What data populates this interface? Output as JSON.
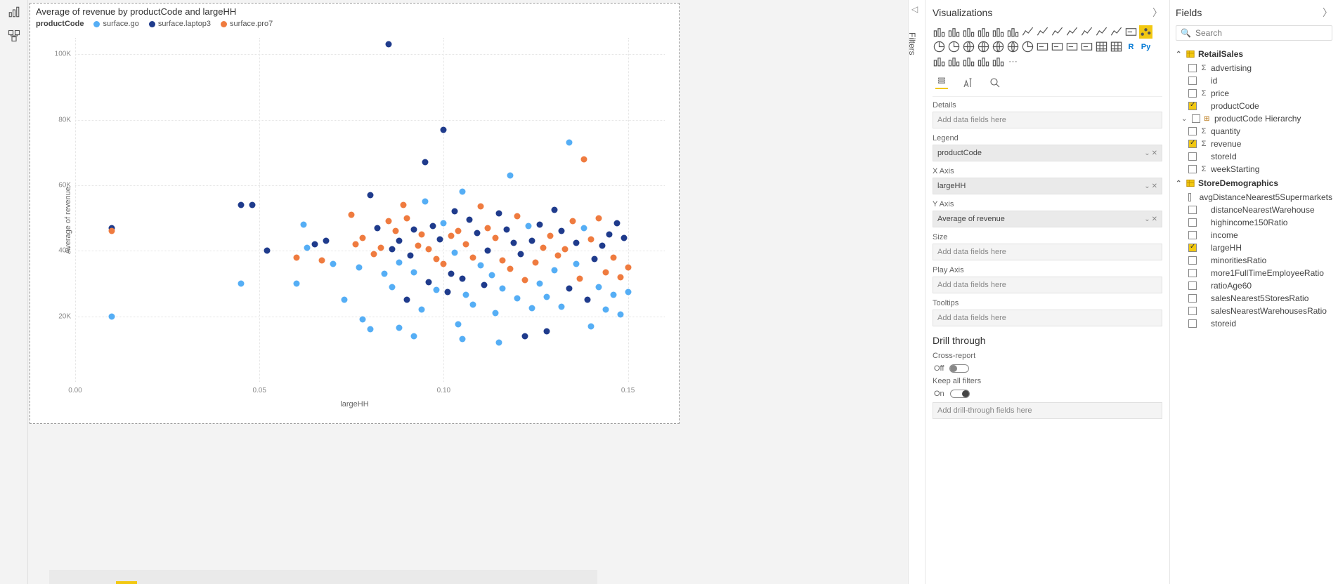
{
  "left_rail": {
    "icons": [
      "report-view-icon",
      "model-view-icon"
    ]
  },
  "chart": {
    "type": "scatter",
    "title": "Average of revenue by productCode and largeHH",
    "legend_title": "productCode",
    "series": [
      {
        "name": "surface.go",
        "color": "#55aef5"
      },
      {
        "name": "surface.laptop3",
        "color": "#1f3b8c"
      },
      {
        "name": "surface.pro7",
        "color": "#ef7b3f"
      }
    ],
    "x_label": "largeHH",
    "y_label": "Average of revenue",
    "xlim": [
      0.0,
      0.16
    ],
    "ylim": [
      0,
      105000
    ],
    "yticks": [
      20000,
      40000,
      60000,
      80000,
      100000
    ],
    "ytick_labels": [
      "20K",
      "40K",
      "60K",
      "80K",
      "100K"
    ],
    "xticks": [
      0.0,
      0.05,
      0.1,
      0.15
    ],
    "xtick_labels": [
      "0.00",
      "0.05",
      "0.10",
      "0.15"
    ],
    "marker_size": 9,
    "background_color": "#ffffff",
    "grid_color": "#e4e4e4",
    "points": [
      {
        "x": 0.01,
        "y": 20000,
        "s": 0
      },
      {
        "x": 0.01,
        "y": 47000,
        "s": 1
      },
      {
        "x": 0.01,
        "y": 46000,
        "s": 2
      },
      {
        "x": 0.045,
        "y": 30000,
        "s": 0
      },
      {
        "x": 0.045,
        "y": 54000,
        "s": 1
      },
      {
        "x": 0.048,
        "y": 54000,
        "s": 1
      },
      {
        "x": 0.052,
        "y": 40000,
        "s": 1
      },
      {
        "x": 0.06,
        "y": 38000,
        "s": 2
      },
      {
        "x": 0.06,
        "y": 30000,
        "s": 0
      },
      {
        "x": 0.062,
        "y": 48000,
        "s": 0
      },
      {
        "x": 0.063,
        "y": 41000,
        "s": 0
      },
      {
        "x": 0.065,
        "y": 42000,
        "s": 1
      },
      {
        "x": 0.067,
        "y": 37000,
        "s": 2
      },
      {
        "x": 0.068,
        "y": 43000,
        "s": 1
      },
      {
        "x": 0.07,
        "y": 36000,
        "s": 0
      },
      {
        "x": 0.073,
        "y": 25000,
        "s": 0
      },
      {
        "x": 0.075,
        "y": 51000,
        "s": 2
      },
      {
        "x": 0.076,
        "y": 42000,
        "s": 2
      },
      {
        "x": 0.077,
        "y": 35000,
        "s": 0
      },
      {
        "x": 0.078,
        "y": 44000,
        "s": 2
      },
      {
        "x": 0.08,
        "y": 57000,
        "s": 1
      },
      {
        "x": 0.08,
        "y": 16000,
        "s": 0
      },
      {
        "x": 0.081,
        "y": 39000,
        "s": 2
      },
      {
        "x": 0.082,
        "y": 47000,
        "s": 1
      },
      {
        "x": 0.083,
        "y": 41000,
        "s": 2
      },
      {
        "x": 0.084,
        "y": 33000,
        "s": 0
      },
      {
        "x": 0.085,
        "y": 49000,
        "s": 2
      },
      {
        "x": 0.085,
        "y": 103000,
        "s": 1
      },
      {
        "x": 0.086,
        "y": 40500,
        "s": 1
      },
      {
        "x": 0.086,
        "y": 29000,
        "s": 0
      },
      {
        "x": 0.087,
        "y": 46000,
        "s": 2
      },
      {
        "x": 0.088,
        "y": 43000,
        "s": 1
      },
      {
        "x": 0.088,
        "y": 36500,
        "s": 0
      },
      {
        "x": 0.089,
        "y": 54000,
        "s": 2
      },
      {
        "x": 0.09,
        "y": 50000,
        "s": 2
      },
      {
        "x": 0.09,
        "y": 25000,
        "s": 1
      },
      {
        "x": 0.091,
        "y": 38500,
        "s": 1
      },
      {
        "x": 0.092,
        "y": 46500,
        "s": 1
      },
      {
        "x": 0.092,
        "y": 33500,
        "s": 0
      },
      {
        "x": 0.093,
        "y": 41500,
        "s": 2
      },
      {
        "x": 0.094,
        "y": 45000,
        "s": 2
      },
      {
        "x": 0.094,
        "y": 22000,
        "s": 0
      },
      {
        "x": 0.095,
        "y": 67000,
        "s": 1
      },
      {
        "x": 0.095,
        "y": 55000,
        "s": 0
      },
      {
        "x": 0.096,
        "y": 40500,
        "s": 2
      },
      {
        "x": 0.096,
        "y": 30500,
        "s": 1
      },
      {
        "x": 0.097,
        "y": 47500,
        "s": 1
      },
      {
        "x": 0.098,
        "y": 37500,
        "s": 2
      },
      {
        "x": 0.098,
        "y": 28000,
        "s": 0
      },
      {
        "x": 0.099,
        "y": 43500,
        "s": 1
      },
      {
        "x": 0.1,
        "y": 77000,
        "s": 1
      },
      {
        "x": 0.1,
        "y": 48500,
        "s": 0
      },
      {
        "x": 0.1,
        "y": 36000,
        "s": 2
      },
      {
        "x": 0.101,
        "y": 27500,
        "s": 1
      },
      {
        "x": 0.102,
        "y": 44500,
        "s": 2
      },
      {
        "x": 0.102,
        "y": 33000,
        "s": 1
      },
      {
        "x": 0.103,
        "y": 52000,
        "s": 1
      },
      {
        "x": 0.103,
        "y": 39500,
        "s": 0
      },
      {
        "x": 0.104,
        "y": 46000,
        "s": 2
      },
      {
        "x": 0.105,
        "y": 58000,
        "s": 0
      },
      {
        "x": 0.105,
        "y": 31500,
        "s": 1
      },
      {
        "x": 0.106,
        "y": 42000,
        "s": 2
      },
      {
        "x": 0.106,
        "y": 26500,
        "s": 0
      },
      {
        "x": 0.107,
        "y": 49500,
        "s": 1
      },
      {
        "x": 0.108,
        "y": 38000,
        "s": 2
      },
      {
        "x": 0.108,
        "y": 23500,
        "s": 0
      },
      {
        "x": 0.109,
        "y": 45500,
        "s": 1
      },
      {
        "x": 0.11,
        "y": 53500,
        "s": 2
      },
      {
        "x": 0.11,
        "y": 35500,
        "s": 0
      },
      {
        "x": 0.111,
        "y": 29500,
        "s": 1
      },
      {
        "x": 0.112,
        "y": 47000,
        "s": 2
      },
      {
        "x": 0.112,
        "y": 40000,
        "s": 1
      },
      {
        "x": 0.113,
        "y": 32500,
        "s": 0
      },
      {
        "x": 0.114,
        "y": 44000,
        "s": 2
      },
      {
        "x": 0.114,
        "y": 21000,
        "s": 0
      },
      {
        "x": 0.115,
        "y": 51500,
        "s": 1
      },
      {
        "x": 0.116,
        "y": 37000,
        "s": 2
      },
      {
        "x": 0.116,
        "y": 28500,
        "s": 0
      },
      {
        "x": 0.117,
        "y": 46500,
        "s": 1
      },
      {
        "x": 0.118,
        "y": 63000,
        "s": 0
      },
      {
        "x": 0.118,
        "y": 34500,
        "s": 2
      },
      {
        "x": 0.119,
        "y": 42500,
        "s": 1
      },
      {
        "x": 0.12,
        "y": 50500,
        "s": 2
      },
      {
        "x": 0.12,
        "y": 25500,
        "s": 0
      },
      {
        "x": 0.121,
        "y": 39000,
        "s": 1
      },
      {
        "x": 0.122,
        "y": 14000,
        "s": 1
      },
      {
        "x": 0.122,
        "y": 31000,
        "s": 2
      },
      {
        "x": 0.123,
        "y": 47500,
        "s": 0
      },
      {
        "x": 0.124,
        "y": 43000,
        "s": 1
      },
      {
        "x": 0.124,
        "y": 22500,
        "s": 0
      },
      {
        "x": 0.125,
        "y": 36500,
        "s": 2
      },
      {
        "x": 0.126,
        "y": 48000,
        "s": 1
      },
      {
        "x": 0.126,
        "y": 30000,
        "s": 0
      },
      {
        "x": 0.127,
        "y": 41000,
        "s": 2
      },
      {
        "x": 0.128,
        "y": 15500,
        "s": 1
      },
      {
        "x": 0.128,
        "y": 26000,
        "s": 0
      },
      {
        "x": 0.129,
        "y": 44500,
        "s": 2
      },
      {
        "x": 0.13,
        "y": 52500,
        "s": 1
      },
      {
        "x": 0.13,
        "y": 34000,
        "s": 0
      },
      {
        "x": 0.131,
        "y": 38500,
        "s": 2
      },
      {
        "x": 0.132,
        "y": 46000,
        "s": 1
      },
      {
        "x": 0.132,
        "y": 23000,
        "s": 0
      },
      {
        "x": 0.133,
        "y": 40500,
        "s": 2
      },
      {
        "x": 0.134,
        "y": 73000,
        "s": 0
      },
      {
        "x": 0.134,
        "y": 28500,
        "s": 1
      },
      {
        "x": 0.135,
        "y": 49000,
        "s": 2
      },
      {
        "x": 0.136,
        "y": 36000,
        "s": 0
      },
      {
        "x": 0.136,
        "y": 42500,
        "s": 1
      },
      {
        "x": 0.137,
        "y": 31500,
        "s": 2
      },
      {
        "x": 0.138,
        "y": 47000,
        "s": 0
      },
      {
        "x": 0.138,
        "y": 68000,
        "s": 2
      },
      {
        "x": 0.139,
        "y": 25000,
        "s": 1
      },
      {
        "x": 0.14,
        "y": 43500,
        "s": 2
      },
      {
        "x": 0.14,
        "y": 17000,
        "s": 0
      },
      {
        "x": 0.141,
        "y": 37500,
        "s": 1
      },
      {
        "x": 0.142,
        "y": 50000,
        "s": 2
      },
      {
        "x": 0.142,
        "y": 29000,
        "s": 0
      },
      {
        "x": 0.143,
        "y": 41500,
        "s": 1
      },
      {
        "x": 0.144,
        "y": 33500,
        "s": 2
      },
      {
        "x": 0.144,
        "y": 22000,
        "s": 0
      },
      {
        "x": 0.145,
        "y": 45000,
        "s": 1
      },
      {
        "x": 0.146,
        "y": 38000,
        "s": 2
      },
      {
        "x": 0.146,
        "y": 26500,
        "s": 0
      },
      {
        "x": 0.147,
        "y": 48500,
        "s": 1
      },
      {
        "x": 0.148,
        "y": 32000,
        "s": 2
      },
      {
        "x": 0.148,
        "y": 20500,
        "s": 0
      },
      {
        "x": 0.149,
        "y": 44000,
        "s": 1
      },
      {
        "x": 0.15,
        "y": 35000,
        "s": 2
      },
      {
        "x": 0.15,
        "y": 27500,
        "s": 0
      },
      {
        "x": 0.078,
        "y": 19000,
        "s": 0
      },
      {
        "x": 0.088,
        "y": 16500,
        "s": 0
      },
      {
        "x": 0.104,
        "y": 17500,
        "s": 0
      },
      {
        "x": 0.092,
        "y": 14000,
        "s": 0
      },
      {
        "x": 0.115,
        "y": 12000,
        "s": 0
      },
      {
        "x": 0.105,
        "y": 13000,
        "s": 0
      }
    ]
  },
  "filters_panel": {
    "label": "Filters"
  },
  "viz_panel": {
    "title": "Visualizations",
    "gallery_icons": [
      "stacked-bar",
      "stacked-column",
      "clustered-bar",
      "clustered-column",
      "100-bar",
      "100-column",
      "line",
      "area",
      "stacked-area",
      "line-clustered",
      "line-stacked",
      "ribbon",
      "waterfall",
      "funnel",
      "scatter",
      "pie",
      "donut",
      "treemap",
      "map",
      "filled-map",
      "shape-map",
      "gauge",
      "card",
      "multi-card",
      "kpi",
      "slicer",
      "table",
      "matrix",
      "r-visual",
      "py-visual",
      "key-influencers",
      "decomp",
      "qa",
      "narrative",
      "paginated",
      "more"
    ],
    "selected_icon_index": 14,
    "format_tabs": [
      "fields-tab",
      "format-tab",
      "analytics-tab"
    ],
    "wells": [
      {
        "label": "Details",
        "value": "",
        "placeholder": "Add data fields here"
      },
      {
        "label": "Legend",
        "value": "productCode",
        "placeholder": ""
      },
      {
        "label": "X Axis",
        "value": "largeHH",
        "placeholder": ""
      },
      {
        "label": "Y Axis",
        "value": "Average of revenue",
        "placeholder": ""
      },
      {
        "label": "Size",
        "value": "",
        "placeholder": "Add data fields here"
      },
      {
        "label": "Play Axis",
        "value": "",
        "placeholder": "Add data fields here"
      },
      {
        "label": "Tooltips",
        "value": "",
        "placeholder": "Add data fields here"
      }
    ],
    "drill": {
      "title": "Drill through",
      "cross_report_label": "Cross-report",
      "cross_report_state": "Off",
      "keep_filters_label": "Keep all filters",
      "keep_filters_state": "On",
      "placeholder": "Add drill-through fields here"
    }
  },
  "fields_panel": {
    "title": "Fields",
    "search_placeholder": "Search",
    "tables": [
      {
        "name": "RetailSales",
        "expanded": true,
        "fields": [
          {
            "name": "advertising",
            "checked": false,
            "sigma": true
          },
          {
            "name": "id",
            "checked": false,
            "sigma": false
          },
          {
            "name": "price",
            "checked": false,
            "sigma": true
          },
          {
            "name": "productCode",
            "checked": true,
            "sigma": false
          },
          {
            "name": "productCode Hierarchy",
            "checked": false,
            "sigma": false,
            "hierarchy": true
          },
          {
            "name": "quantity",
            "checked": false,
            "sigma": true
          },
          {
            "name": "revenue",
            "checked": true,
            "sigma": true
          },
          {
            "name": "storeId",
            "checked": false,
            "sigma": false
          },
          {
            "name": "weekStarting",
            "checked": false,
            "sigma": true
          }
        ]
      },
      {
        "name": "StoreDemographics",
        "expanded": true,
        "fields": [
          {
            "name": "avgDistanceNearest5Supermarkets",
            "checked": false,
            "sigma": false
          },
          {
            "name": "distanceNearestWarehouse",
            "checked": false,
            "sigma": false
          },
          {
            "name": "highincome150Ratio",
            "checked": false,
            "sigma": false
          },
          {
            "name": "income",
            "checked": false,
            "sigma": false
          },
          {
            "name": "largeHH",
            "checked": true,
            "sigma": false
          },
          {
            "name": "minoritiesRatio",
            "checked": false,
            "sigma": false
          },
          {
            "name": "more1FullTimeEmployeeRatio",
            "checked": false,
            "sigma": false
          },
          {
            "name": "ratioAge60",
            "checked": false,
            "sigma": false
          },
          {
            "name": "salesNearest5StoresRatio",
            "checked": false,
            "sigma": false
          },
          {
            "name": "salesNearestWarehousesRatio",
            "checked": false,
            "sigma": false
          },
          {
            "name": "storeid",
            "checked": false,
            "sigma": false
          }
        ]
      }
    ]
  }
}
